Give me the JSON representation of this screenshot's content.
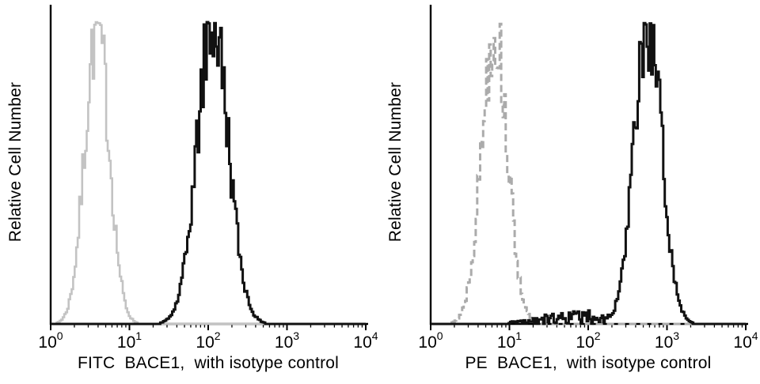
{
  "figure": {
    "background": "#ffffff",
    "axis_color": "#000000"
  },
  "chart_data": [
    {
      "type": "histogram",
      "panel": "FITC",
      "xlabel": "FITC  BACE1,  with isotype control",
      "ylabel": "Relative Cell Number",
      "x_scale": "log10",
      "x_range_log10": [
        0,
        4
      ],
      "grid": false,
      "legend_position": "none",
      "x_ticks": [
        {
          "base": "10",
          "exp": "0",
          "value": 1
        },
        {
          "base": "10",
          "exp": "1",
          "value": 10
        },
        {
          "base": "10",
          "exp": "2",
          "value": 100
        },
        {
          "base": "10",
          "exp": "3",
          "value": 1000
        },
        {
          "base": "10",
          "exp": "4",
          "value": 10000
        }
      ],
      "series": [
        {
          "name": "isotype-control",
          "legend": "isotype control",
          "color": "#c3c3c3",
          "line_style": "solid",
          "line_width": 2.6,
          "peak_x_value": 3.8,
          "peak_log10": 0.58,
          "sigma_log10": 0.155,
          "peak_height_frac": 0.94,
          "seed": 7
        },
        {
          "name": "fitc-bace1",
          "legend": "FITC BACE1",
          "color": "#111111",
          "line_style": "solid",
          "line_width": 3,
          "peak_x_value": 112,
          "peak_log10": 2.05,
          "sigma_log10": 0.2,
          "peak_height_frac": 0.95,
          "seed": 42
        }
      ]
    },
    {
      "type": "histogram",
      "panel": "PE",
      "xlabel": "PE  BACE1,  with isotype control",
      "ylabel": "Relative Cell Number",
      "x_scale": "log10",
      "x_range_log10": [
        0,
        4
      ],
      "grid": false,
      "legend_position": "none",
      "x_ticks": [
        {
          "base": "10",
          "exp": "0",
          "value": 1
        },
        {
          "base": "10",
          "exp": "1",
          "value": 10
        },
        {
          "base": "10",
          "exp": "2",
          "value": 100
        },
        {
          "base": "10",
          "exp": "3",
          "value": 1000
        },
        {
          "base": "10",
          "exp": "4",
          "value": 10000
        }
      ],
      "series": [
        {
          "name": "isotype-control",
          "legend": "isotype control",
          "color": "#ababab",
          "line_style": "dashed",
          "line_width": 3,
          "peak_x_value": 6.3,
          "peak_log10": 0.8,
          "sigma_log10": 0.165,
          "peak_height_frac": 0.93,
          "seed": 13
        },
        {
          "name": "pe-bace1",
          "legend": "PE BACE1",
          "color": "#111111",
          "line_style": "solid",
          "line_width": 3,
          "peak_x_value": 560,
          "peak_log10": 2.75,
          "sigma_log10": 0.175,
          "peak_height_frac": 0.94,
          "seed": 99,
          "noise_floor": {
            "center_log10": 1.9,
            "sigma_log10": 0.5,
            "height_frac": 0.022
          }
        }
      ]
    }
  ]
}
